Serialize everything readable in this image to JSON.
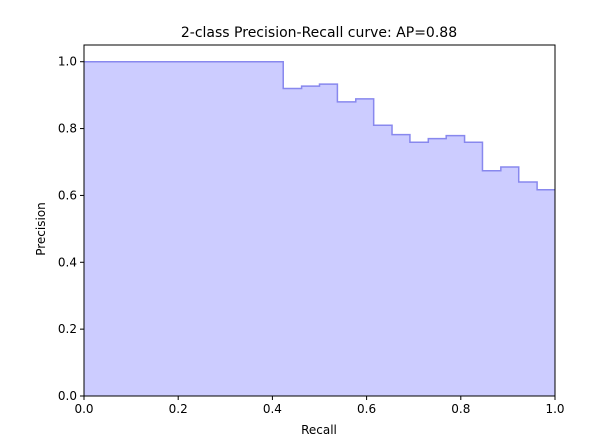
{
  "chart_data": {
    "type": "area",
    "title": "2-class Precision-Recall curve: AP=0.88",
    "xlabel": "Recall",
    "ylabel": "Precision",
    "xlim": [
      0.0,
      1.0
    ],
    "ylim": [
      0.0,
      1.05
    ],
    "grid": false,
    "step": "post",
    "fill_color": "#ccccff",
    "line_color": "#8888ee",
    "x_ticks": [
      "0.0",
      "0.2",
      "0.4",
      "0.6",
      "0.8",
      "1.0"
    ],
    "y_ticks": [
      "0.0",
      "0.2",
      "0.4",
      "0.6",
      "0.8",
      "1.0"
    ],
    "x_tick_values": [
      0.0,
      0.2,
      0.4,
      0.6,
      0.8,
      1.0
    ],
    "y_tick_values": [
      0.0,
      0.2,
      0.4,
      0.6,
      0.8,
      1.0
    ],
    "series": [
      {
        "recall": [
          0.0,
          0.423,
          0.462,
          0.5,
          0.538,
          0.577,
          0.615,
          0.654,
          0.692,
          0.731,
          0.769,
          0.808,
          0.846,
          0.885,
          0.923,
          0.962,
          1.0
        ],
        "precision": [
          1.0,
          0.92,
          0.927,
          0.933,
          0.88,
          0.889,
          0.81,
          0.782,
          0.759,
          0.77,
          0.779,
          0.759,
          0.674,
          0.685,
          0.64,
          0.617,
          0.617
        ]
      }
    ]
  }
}
